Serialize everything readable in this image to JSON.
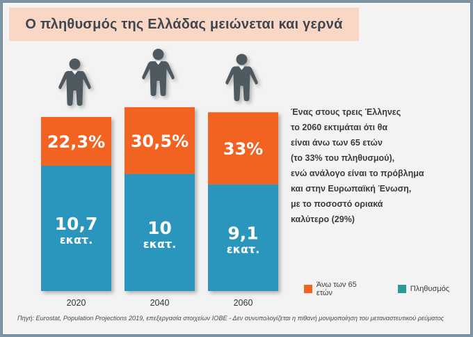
{
  "title": "Ο πληθυσμός της Ελλάδας μειώνεται και γερνά",
  "chart_data": {
    "type": "bar",
    "stacked": true,
    "title": "Ο πληθυσμός της Ελλάδας μειώνεται και γερνά",
    "categories": [
      "2020",
      "2040",
      "2060"
    ],
    "series": [
      {
        "name": "Πληθυσμός",
        "values": [
          10.7,
          10,
          9.1
        ],
        "labels": [
          "10,7",
          "10",
          "9,1"
        ],
        "unit_label": "εκατ."
      },
      {
        "name": "Άνω των 65 ετών",
        "values": [
          22.3,
          30.5,
          33
        ],
        "labels": [
          "22,3%",
          "30,5%",
          "33%"
        ]
      }
    ],
    "xlabel": "",
    "ylabel": "",
    "legend_position": "bottom-right",
    "grid": false
  },
  "colors": {
    "over65": "#f26322",
    "population_bar": "#2b96bd",
    "population_legend": "#2a9a96",
    "person_icon": "#4f5a61",
    "title_band": "#f9d7c4"
  },
  "description_lines": [
    "Ένας στους τρεις Έλληνες",
    "το 2060 εκτιμάται ότι θα",
    "είναι άνω των 65 ετών",
    "(το 33% του πληθυσμού),",
    "ενώ ανάλογο είναι το πρόβλημα",
    "και στην Ευρωπαϊκή Ένωση,",
    "με το ποσοστό οριακά",
    "καλύτερο (29%)"
  ],
  "legend": [
    {
      "label": "Άνω των 65 ετών",
      "color": "#f26322"
    },
    {
      "label": "Πληθυσμός",
      "color": "#2a9a96"
    }
  ],
  "footer": "Πηγή: Eurostat, Population Projections 2019, επεξεργασία στοιχείων ΙΟΒΕ - Δεν συνυπολογίζεται η πιθανή μονιμοποίηση του μεταναστευτικού ρεύματος"
}
